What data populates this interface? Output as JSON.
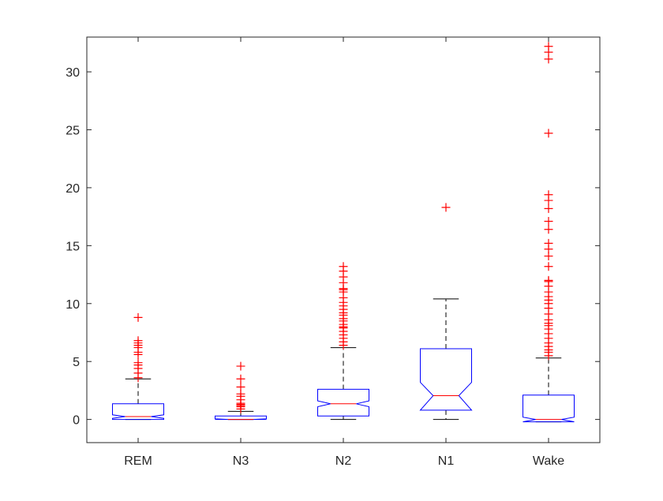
{
  "chart_data": {
    "type": "box",
    "notched": true,
    "categories": [
      "REM",
      "N3",
      "N2",
      "N1",
      "Wake"
    ],
    "ylim": [
      -2,
      33
    ],
    "yticks": [
      0,
      5,
      10,
      15,
      20,
      25,
      30
    ],
    "ytick_labels": [
      "0",
      "5",
      "10",
      "15",
      "20",
      "25",
      "30"
    ],
    "grid": false,
    "colors": {
      "box": "#0000ff",
      "median": "#ff0000",
      "whisker": "#000000",
      "outlier": "#ff0000",
      "axis": "#262626"
    },
    "boxes": [
      {
        "category": "REM",
        "q1": 0.0,
        "median": 0.25,
        "q3": 1.35,
        "whisker_low": 0.0,
        "whisker_high": 3.5,
        "notch_low": 0.1,
        "notch_high": 0.4,
        "outliers": [
          3.6,
          4.0,
          4.4,
          4.7,
          4.9,
          5.6,
          5.8,
          6.2,
          6.4,
          6.6,
          6.8,
          8.8
        ]
      },
      {
        "category": "N3",
        "q1": 0.0,
        "median": 0.0,
        "q3": 0.3,
        "whisker_low": 0.0,
        "whisker_high": 0.7,
        "notch_low": 0.0,
        "notch_high": 0.05,
        "outliers": [
          0.9,
          1.1,
          1.2,
          1.3,
          1.4,
          1.7,
          2.0,
          2.2,
          2.8,
          3.5,
          4.6
        ]
      },
      {
        "category": "N2",
        "q1": 0.3,
        "median": 1.35,
        "q3": 2.6,
        "whisker_low": 0.0,
        "whisker_high": 6.2,
        "notch_low": 1.1,
        "notch_high": 1.6,
        "outliers": [
          6.4,
          6.7,
          7.0,
          7.3,
          7.6,
          7.9,
          8.0,
          8.2,
          8.5,
          8.7,
          9.0,
          9.2,
          9.5,
          9.8,
          10.1,
          10.5,
          11.0,
          11.2,
          11.3,
          11.8,
          12.3,
          12.8,
          13.2
        ]
      },
      {
        "category": "N1",
        "q1": 0.8,
        "median": 2.05,
        "q3": 6.1,
        "whisker_low": 0.0,
        "whisker_high": 10.4,
        "notch_low": 0.8,
        "notch_high": 3.2,
        "outliers": [
          18.3
        ]
      },
      {
        "category": "Wake",
        "q1": -0.2,
        "median": 0.0,
        "q3": 2.1,
        "whisker_low": -0.2,
        "whisker_high": 5.3,
        "notch_low": -0.2,
        "notch_high": 0.2,
        "outliers": [
          5.5,
          5.8,
          6.0,
          6.3,
          6.6,
          7.0,
          7.4,
          7.8,
          8.1,
          8.3,
          8.6,
          9.1,
          9.6,
          10.0,
          10.3,
          10.6,
          11.0,
          11.5,
          11.9,
          12.0,
          13.2,
          14.1,
          14.7,
          15.2,
          16.4,
          17.1,
          18.2,
          18.9,
          19.4,
          24.7,
          31.1,
          31.7,
          32.2
        ]
      }
    ]
  }
}
